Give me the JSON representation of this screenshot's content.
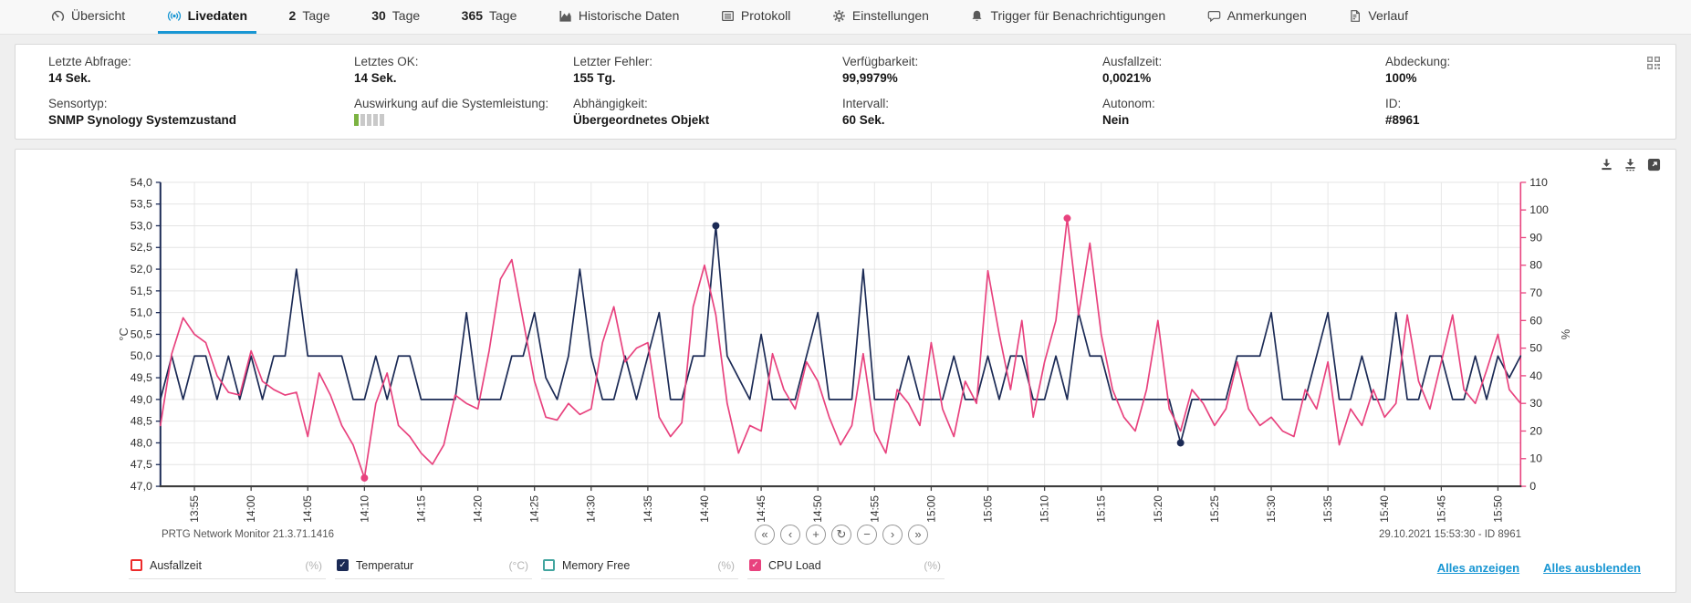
{
  "colors": {
    "accent_blue": "#1896d3",
    "temperature_navy": "#1b2a55",
    "cpu_pink": "#e8427e",
    "downtime_red": "#ed2b2b",
    "memory_teal": "#43a59f",
    "impact_green": "#7cb342"
  },
  "tabs": [
    {
      "name": "tab-uebersicht",
      "icon": "gauge-icon",
      "label": "Übersicht",
      "active": false
    },
    {
      "name": "tab-livedaten",
      "icon": "live-icon",
      "label": "Livedaten",
      "active": true
    },
    {
      "name": "tab-2-tage",
      "prefix": "2",
      "label": "Tage",
      "active": false
    },
    {
      "name": "tab-30-tage",
      "prefix": "30",
      "label": "Tage",
      "active": false
    },
    {
      "name": "tab-365-tage",
      "prefix": "365",
      "label": "Tage",
      "active": false
    },
    {
      "name": "tab-historische-daten",
      "icon": "chart-icon",
      "label": "Historische Daten",
      "active": false
    },
    {
      "name": "tab-protokoll",
      "icon": "protocol-icon",
      "label": "Protokoll",
      "active": false
    },
    {
      "name": "tab-einstellungen",
      "icon": "gear-icon",
      "label": "Einstellungen",
      "active": false
    },
    {
      "name": "tab-trigger",
      "icon": "bell-icon",
      "label": "Trigger für Benachrichtigungen",
      "active": false
    },
    {
      "name": "tab-anmerkungen",
      "icon": "comment-icon",
      "label": "Anmerkungen",
      "active": false
    },
    {
      "name": "tab-verlauf",
      "icon": "history-icon",
      "label": "Verlauf",
      "active": false
    }
  ],
  "info_panel": {
    "cells": [
      {
        "label": "Letzte Abfrage:",
        "value": "14 Sek."
      },
      {
        "label": "Letztes OK:",
        "value": "14 Sek."
      },
      {
        "label": "Letzter Fehler:",
        "value": "155 Tg."
      },
      {
        "label": "Verfügbarkeit:",
        "value": "99,9979%"
      },
      {
        "label": "Ausfallzeit:",
        "value": "0,0021%"
      },
      {
        "label": "Abdeckung:",
        "value": "100%"
      },
      {
        "label": "Sensortyp:",
        "value": "SNMP Synology Systemzustand"
      },
      {
        "label": "Auswirkung auf die Systemleistung:",
        "value": "",
        "indicator": "performance-impact-bar",
        "impact_level": 1,
        "impact_segments": 5
      },
      {
        "label": "Abhängigkeit:",
        "value": "Übergeordnetes Objekt"
      },
      {
        "label": "Intervall:",
        "value": "60 Sek."
      },
      {
        "label": "Autonom:",
        "value": "Nein"
      },
      {
        "label": "ID:",
        "value": "#8961"
      }
    ]
  },
  "chart_card": {
    "actions": [
      {
        "name": "download-png-icon"
      },
      {
        "name": "download-csv-icon"
      },
      {
        "name": "open-fullscreen-icon"
      }
    ],
    "footer_left": "PRTG Network Monitor 21.3.71.1416",
    "footer_right": "29.10.2021 15:53:30 - ID 8961",
    "nav_buttons": [
      {
        "name": "fast-backward-button",
        "glyph": "«"
      },
      {
        "name": "step-backward-button",
        "glyph": "‹"
      },
      {
        "name": "zoom-in-button",
        "glyph": "+"
      },
      {
        "name": "refresh-button",
        "glyph": "↻"
      },
      {
        "name": "zoom-out-button",
        "glyph": "−"
      },
      {
        "name": "step-forward-button",
        "glyph": "›"
      },
      {
        "name": "fast-forward-button",
        "glyph": "»"
      }
    ],
    "legend": {
      "items": [
        {
          "name": "legend-ausfallzeit",
          "label": "Ausfallzeit",
          "unit": "(%)",
          "color": "#ed2b2b",
          "checked": false
        },
        {
          "name": "legend-temperatur",
          "label": "Temperatur",
          "unit": "(°C)",
          "color": "#1b2a55",
          "checked": true
        },
        {
          "name": "legend-memory-free",
          "label": "Memory Free",
          "unit": "(%)",
          "color": "#43a59f",
          "checked": false
        },
        {
          "name": "legend-cpu-load",
          "label": "CPU Load",
          "unit": "(%)",
          "color": "#e8427e",
          "checked": true
        }
      ],
      "links": [
        {
          "name": "show-all",
          "label": "Alles anzeigen"
        },
        {
          "name": "hide-all",
          "label": "Alles ausblenden"
        }
      ]
    }
  },
  "chart_data": {
    "type": "line",
    "left_axis": {
      "label": "°C",
      "min": 47,
      "max": 54,
      "step": 0.5
    },
    "right_axis": {
      "label": "%",
      "min": 0,
      "max": 110,
      "step": 10
    },
    "x_tick_labels": [
      "13:55",
      "14:00",
      "14:05",
      "14:10",
      "14:15",
      "14:20",
      "14:25",
      "14:30",
      "14:35",
      "14:40",
      "14:45",
      "14:50",
      "14:55",
      "15:00",
      "15:05",
      "15:10",
      "15:15",
      "15:20",
      "15:25",
      "15:30",
      "15:35",
      "15:40",
      "15:45",
      "15:50"
    ],
    "x_tick_first_index": 3,
    "x_tick_step": 5,
    "grid": true,
    "series": [
      {
        "name": "Temperatur",
        "unit": "°C",
        "axis": "left",
        "color": "#1b2a55",
        "values": [
          49,
          50,
          49,
          50,
          50,
          49,
          50,
          49,
          50,
          49,
          50,
          50,
          52,
          50,
          50,
          50,
          50,
          49,
          49,
          50,
          49,
          50,
          50,
          49,
          49,
          49,
          49,
          51,
          49,
          49,
          49,
          50,
          50,
          51,
          49.5,
          49,
          50,
          52,
          50,
          49,
          49,
          50,
          49,
          50,
          51,
          49,
          49,
          50,
          50,
          53,
          50,
          49.5,
          49,
          50.5,
          49,
          49,
          49,
          50,
          51,
          49,
          49,
          49,
          52,
          49,
          49,
          49,
          50,
          49,
          49,
          49,
          50,
          49,
          49,
          50,
          49,
          50,
          50,
          49,
          49,
          50,
          49,
          51,
          50,
          50,
          49,
          49,
          49,
          49,
          49,
          49,
          48,
          49,
          49,
          49,
          49,
          50,
          50,
          50,
          51,
          49,
          49,
          49,
          50,
          51,
          49,
          49,
          50,
          49,
          49,
          51,
          49,
          49,
          50,
          50,
          49,
          49,
          50,
          49,
          50,
          49.5,
          50
        ]
      },
      {
        "name": "CPU Load",
        "unit": "%",
        "axis": "right",
        "color": "#e8427e",
        "values": [
          22,
          48,
          61,
          55,
          52,
          40,
          34,
          33,
          49,
          38,
          35,
          33,
          34,
          18,
          41,
          33,
          22,
          15,
          3,
          30,
          41,
          22,
          18,
          12,
          8,
          15,
          33,
          30,
          28,
          49,
          75,
          82,
          60,
          38,
          25,
          24,
          30,
          26,
          28,
          52,
          65,
          45,
          50,
          52,
          25,
          18,
          23,
          65,
          80,
          62,
          30,
          12,
          22,
          20,
          48,
          35,
          28,
          45,
          38,
          25,
          15,
          22,
          48,
          20,
          12,
          35,
          30,
          22,
          52,
          28,
          18,
          38,
          30,
          78,
          55,
          35,
          60,
          25,
          45,
          60,
          97,
          62,
          88,
          55,
          35,
          25,
          20,
          35,
          60,
          28,
          20,
          35,
          30,
          22,
          28,
          45,
          28,
          22,
          25,
          20,
          18,
          35,
          28,
          45,
          15,
          28,
          22,
          35,
          25,
          30,
          62,
          38,
          28,
          45,
          62,
          35,
          30,
          42,
          55,
          35,
          30
        ]
      }
    ],
    "markers": [
      {
        "series": 0,
        "index": 49
      },
      {
        "series": 0,
        "index": 90
      },
      {
        "series": 1,
        "index": 18
      },
      {
        "series": 1,
        "index": 80
      }
    ]
  }
}
